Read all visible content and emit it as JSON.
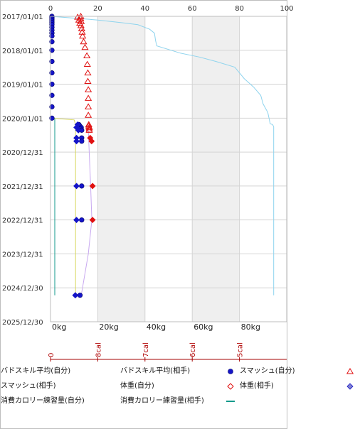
{
  "chart_data": {
    "type": "scatter",
    "title": "",
    "top_axis": {
      "min": 0,
      "max": 100,
      "ticks": [
        0,
        20,
        40,
        60,
        80,
        100
      ]
    },
    "kg_axis": {
      "min": 0,
      "max": 100,
      "ticks": [
        "0kg",
        "20kg",
        "40kg",
        "60kg",
        "80kg"
      ],
      "tick_values": [
        0,
        20,
        40,
        60,
        80
      ]
    },
    "cal_axis": {
      "ticks": [
        "0",
        "8cal",
        "7cal",
        "6cal",
        "5cal"
      ]
    },
    "y_axis": {
      "type": "date",
      "ticks": [
        "2017/01/01",
        "2018/01/01",
        "2019/01/01",
        "2020/01/01",
        "2020/12/31",
        "2021/12/31",
        "2022/12/31",
        "2023/12/31",
        "2024/12/30",
        "2025/12/30"
      ]
    },
    "grid": true,
    "shaded_bands": [
      [
        20,
        40
      ],
      [
        60,
        80
      ]
    ],
    "legend": {
      "placement": "bottom",
      "items": [
        {
          "label": "バドスキル平均(自分)",
          "symbol": "hidden"
        },
        {
          "label": "バドスキル平均(相手)",
          "symbol": "dot-blue"
        },
        {
          "label": "スマッシュ(自分)",
          "symbol": "triangle-red"
        },
        {
          "label": "スマッシュ(相手)",
          "symbol": "hidden"
        },
        {
          "label": "体重(自分)",
          "symbol": "diamond-red"
        },
        {
          "label": "体重(相手)",
          "symbol": "diamond-blue"
        },
        {
          "label": "消費カロリー練習量(自分)",
          "symbol": "hidden"
        },
        {
          "label": "消費カロリー練習量(相手)",
          "symbol": "line-teal"
        }
      ]
    },
    "series": [
      {
        "name": "バドスキル平均(相手)",
        "marker": "dot",
        "color": "#1414c8",
        "points": [
          [
            0.6,
            "2017/01/01"
          ],
          [
            0.6,
            "2017/01/15"
          ],
          [
            0.6,
            "2017/02/01"
          ],
          [
            0.6,
            "2017/02/20"
          ],
          [
            0.6,
            "2017/03/10"
          ],
          [
            0.6,
            "2017/04/01"
          ],
          [
            0.6,
            "2017/05/01"
          ],
          [
            0.6,
            "2017/06/01"
          ],
          [
            0.6,
            "2017/07/01"
          ],
          [
            0.6,
            "2017/08/01"
          ],
          [
            0.6,
            "2017/10/01"
          ],
          [
            0.6,
            "2018/01/01"
          ],
          [
            0.6,
            "2018/05/01"
          ],
          [
            0.6,
            "2018/09/01"
          ],
          [
            0.6,
            "2019/01/01"
          ],
          [
            0.6,
            "2019/05/01"
          ],
          [
            0.6,
            "2019/09/01"
          ],
          [
            0.6,
            "2020/01/01"
          ],
          [
            12,
            "2020/03/10"
          ],
          [
            12.4,
            "2020/03/25"
          ],
          [
            13,
            "2020/04/10"
          ],
          [
            12.5,
            "2020/04/25"
          ],
          [
            13.2,
            "2020/05/10"
          ],
          [
            13.2,
            "2020/08/01"
          ],
          [
            13.2,
            "2020/09/05"
          ],
          [
            13.2,
            "2021/12/31"
          ],
          [
            13.2,
            "2022/12/31"
          ],
          [
            12.5,
            "2025/03/20"
          ]
        ]
      },
      {
        "name": "スマッシュ(自分)",
        "marker": "triangle",
        "color": "#e01010",
        "points": [
          [
            12.8,
            "2017/01/01"
          ],
          [
            11.5,
            "2017/01/10"
          ],
          [
            12.8,
            "2017/01/25"
          ],
          [
            12,
            "2017/02/10"
          ],
          [
            13,
            "2017/02/25"
          ],
          [
            12.4,
            "2017/03/15"
          ],
          [
            12.9,
            "2017/04/10"
          ],
          [
            13.2,
            "2017/05/15"
          ],
          [
            13.4,
            "2017/06/20"
          ],
          [
            13.6,
            "2017/08/01"
          ],
          [
            14,
            "2017/10/01"
          ],
          [
            14.6,
            "2017/12/01"
          ],
          [
            15.4,
            "2018/03/01"
          ],
          [
            15.6,
            "2018/06/01"
          ],
          [
            15.8,
            "2018/09/01"
          ],
          [
            15.8,
            "2018/12/01"
          ],
          [
            16,
            "2019/03/01"
          ],
          [
            16,
            "2019/06/01"
          ],
          [
            16,
            "2019/09/01"
          ],
          [
            16,
            "2019/12/01"
          ],
          [
            16.2,
            "2020/03/10"
          ],
          [
            16.2,
            "2020/03/25"
          ],
          [
            16.4,
            "2020/04/10"
          ],
          [
            16.4,
            "2020/04/25"
          ],
          [
            16.4,
            "2020/05/10"
          ]
        ]
      },
      {
        "name": "体重(自分)",
        "marker": "diamond",
        "color": "#e01010",
        "points": [
          [
            16.8,
            "2020/08/01"
          ],
          [
            17.4,
            "2020/09/05"
          ],
          [
            17.8,
            "2021/12/31"
          ],
          [
            17.8,
            "2022/12/31"
          ]
        ]
      },
      {
        "name": "体重(相手)",
        "marker": "diamond",
        "color": "#1414c8",
        "points": [
          [
            11.5,
            "2020/03/10"
          ],
          [
            11,
            "2020/04/10"
          ],
          [
            11.8,
            "2020/05/10"
          ],
          [
            11,
            "2020/08/01"
          ],
          [
            11,
            "2020/09/05"
          ],
          [
            11,
            "2021/12/31"
          ],
          [
            11,
            "2022/12/31"
          ],
          [
            10.5,
            "2025/03/20"
          ]
        ]
      },
      {
        "name": "消費カロリー練習量(相手)",
        "type": "line",
        "color": "#139a8c",
        "points": [
          [
            1.8,
            "2020/01/01"
          ],
          [
            1.8,
            "2025/03/20"
          ]
        ]
      },
      {
        "name": "",
        "type": "line",
        "color": "#8fd4ee",
        "points": [
          [
            0,
            "2017/01/01"
          ],
          [
            10,
            "2017/01/20"
          ],
          [
            20,
            "2017/02/10"
          ],
          [
            30,
            "2017/03/10"
          ],
          [
            37,
            "2017/04/01"
          ],
          [
            42,
            "2017/05/20"
          ],
          [
            44,
            "2017/07/01"
          ],
          [
            44.5,
            "2017/09/20"
          ],
          [
            45,
            "2017/11/15"
          ],
          [
            55,
            "2018/02/01"
          ],
          [
            63,
            "2018/03/15"
          ],
          [
            70,
            "2018/05/01"
          ],
          [
            78,
            "2018/07/01"
          ],
          [
            80,
            "2018/09/01"
          ],
          [
            82,
            "2018/11/01"
          ],
          [
            86,
            "2019/02/01"
          ],
          [
            89,
            "2019/05/01"
          ],
          [
            90,
            "2019/08/01"
          ],
          [
            92,
            "2019/11/01"
          ],
          [
            93,
            "2020/03/01"
          ],
          [
            94,
            "2020/03/10"
          ],
          [
            94.5,
            "2020/04/01"
          ],
          [
            94.5,
            "2025/03/20"
          ]
        ]
      },
      {
        "name": "",
        "type": "line",
        "color": "#d8d860",
        "points": [
          [
            0,
            "2020/01/01"
          ],
          [
            10,
            "2020/01/20"
          ],
          [
            10.6,
            "2020/03/10"
          ],
          [
            10.6,
            "2025/03/20"
          ]
        ]
      },
      {
        "name": "",
        "type": "line",
        "color": "#c8a8f0",
        "points": [
          [
            16,
            "2020/05/10"
          ],
          [
            17,
            "2021/12/31"
          ],
          [
            17.5,
            "2022/12/31"
          ],
          [
            16,
            "2024/01/01"
          ],
          [
            13,
            "2025/03/20"
          ]
        ]
      }
    ]
  }
}
